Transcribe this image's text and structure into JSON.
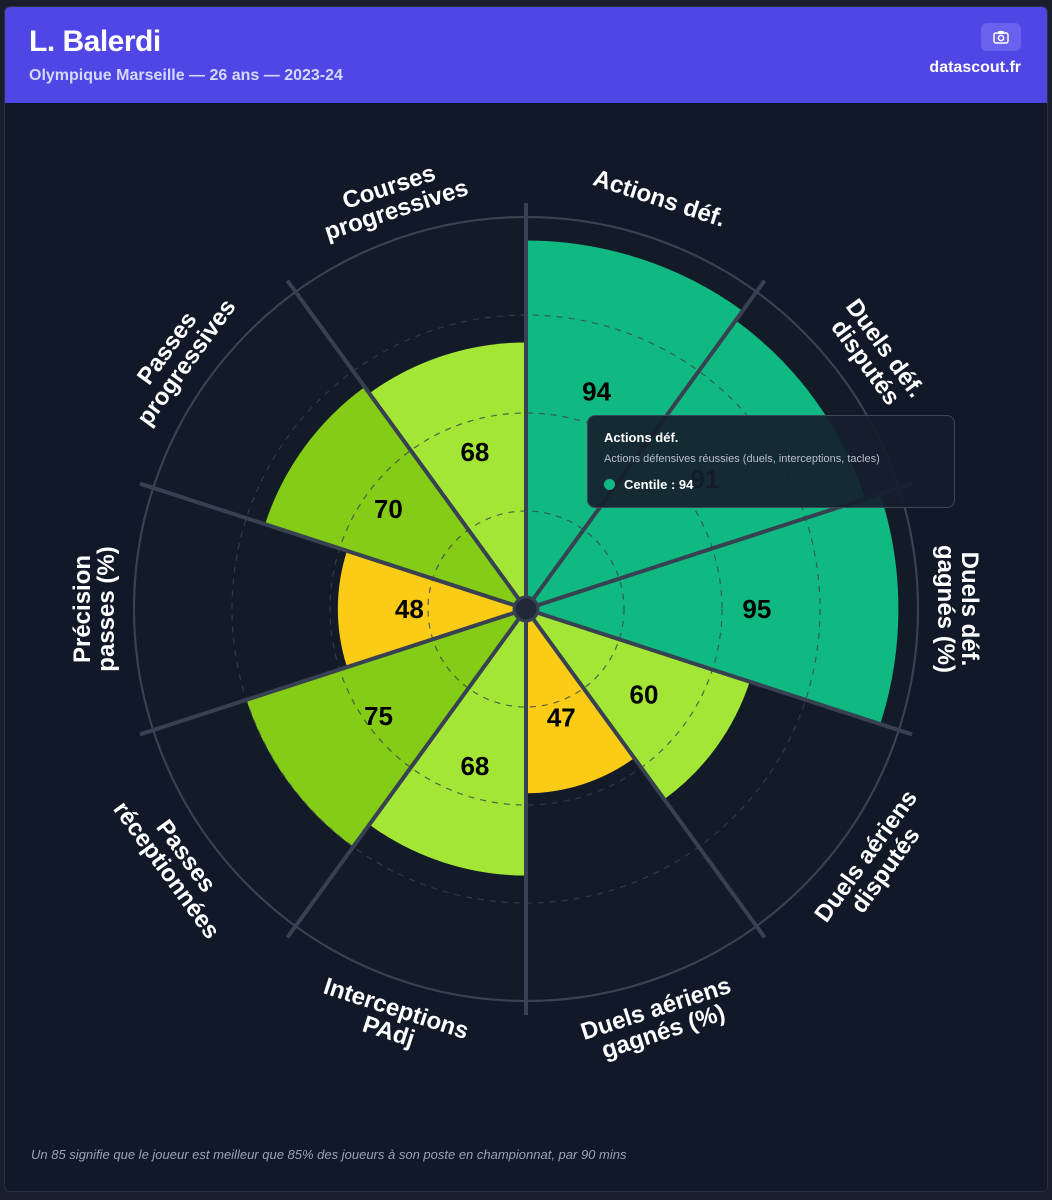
{
  "header": {
    "title": "L. Balerdi",
    "subtitle": "Olympique Marseille — 26 ans — 2023-24",
    "brand": "datascout.fr",
    "camera_icon": "camera-icon"
  },
  "colors": {
    "header_bg": "#4f46e5",
    "background": "#111827",
    "elite": "#10b981",
    "very_good": "#84cc16",
    "good": "#a3e635",
    "average": "#facc15"
  },
  "chart_data": {
    "type": "polar-area",
    "title": "",
    "rlim": [
      0,
      100
    ],
    "grid": true,
    "categories": [
      "Actions déf.",
      "Duels déf. disputés",
      "Duels déf. gagnés (%)",
      "Duels aériens disputés",
      "Duels aériens gagnés (%)",
      "Interceptions PAdj",
      "Passes réceptionnées",
      "Précision passes (%)",
      "Passes progressives",
      "Courses progressives"
    ],
    "labels": [
      [
        "Actions déf."
      ],
      [
        "Duels déf.",
        "disputés"
      ],
      [
        "Duels déf.",
        "gagnés (%)"
      ],
      [
        "Duels aériens",
        "disputés"
      ],
      [
        "Duels aériens",
        "gagnés (%)"
      ],
      [
        "Interceptions",
        "PAdj"
      ],
      [
        "Passes",
        "réceptionnées"
      ],
      [
        "Précision",
        "passes (%)"
      ],
      [
        "Passes",
        "progressives"
      ],
      [
        "Courses",
        "progressives"
      ]
    ],
    "values": [
      94,
      91,
      95,
      60,
      47,
      68,
      75,
      48,
      70,
      68
    ],
    "slice_colors": [
      "#10b981",
      "#10b981",
      "#10b981",
      "#a3e635",
      "#facc15",
      "#a3e635",
      "#84cc16",
      "#facc15",
      "#84cc16",
      "#a3e635"
    ]
  },
  "tooltip": {
    "title": "Actions déf.",
    "description": "Actions défensives réussies (duels, interceptions, tacles)",
    "value": "Centile : 94"
  },
  "footnote": "Un 85 signifie que le joueur est meilleur que 85% des joueurs à son poste en championnat, par 90 mins"
}
